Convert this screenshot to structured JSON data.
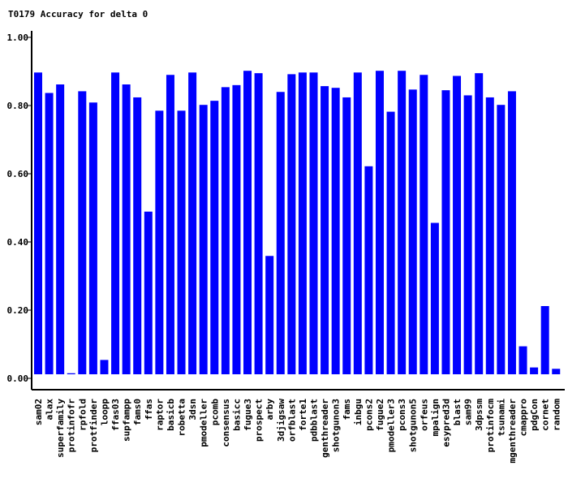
{
  "chart_data": {
    "type": "bar",
    "title": "T0179 Accuracy for delta 0",
    "xlabel": "",
    "ylabel": "",
    "ylim": [
      0,
      1.0
    ],
    "yticks": [
      "0.00",
      "0.20",
      "0.40",
      "0.60",
      "0.80",
      "1.00"
    ],
    "bar_color": "#0000ff",
    "grid": false,
    "categories": [
      "sam02",
      "alax",
      "superfamily",
      "protinfofr",
      "rpfold",
      "protfinder",
      "loopp",
      "ffas03",
      "supfampp",
      "fams0",
      "ffas",
      "raptor",
      "basicb",
      "robetta",
      "3dsn",
      "pmodeller",
      "pcomb",
      "consensus",
      "basicc",
      "fugue3",
      "prospect",
      "arby",
      "3djigsaw",
      "orfblast",
      "forte1",
      "pdbblast",
      "genthreader",
      "shotgunon3",
      "fams",
      "inbgu",
      "pcons2",
      "fugue2",
      "pmodeller3",
      "pcons3",
      "shotgunon5",
      "orfeus",
      "mpalign",
      "esypred3d",
      "blast",
      "sam99",
      "3dpssm",
      "protinfocm",
      "tsunami",
      "mgenthreader",
      "cmappro",
      "pdgCon",
      "cornet",
      "random"
    ],
    "values": [
      0.885,
      0.825,
      0.85,
      0.003,
      0.83,
      0.797,
      0.042,
      0.885,
      0.85,
      0.812,
      0.477,
      0.773,
      0.878,
      0.773,
      0.885,
      0.79,
      0.802,
      0.842,
      0.848,
      0.89,
      0.883,
      0.347,
      0.828,
      0.88,
      0.885,
      0.885,
      0.845,
      0.84,
      0.812,
      0.885,
      0.61,
      0.89,
      0.77,
      0.89,
      0.835,
      0.878,
      0.444,
      0.833,
      0.875,
      0.818,
      0.883,
      0.812,
      0.79,
      0.83,
      0.082,
      0.02,
      0.2,
      0.016
    ]
  }
}
